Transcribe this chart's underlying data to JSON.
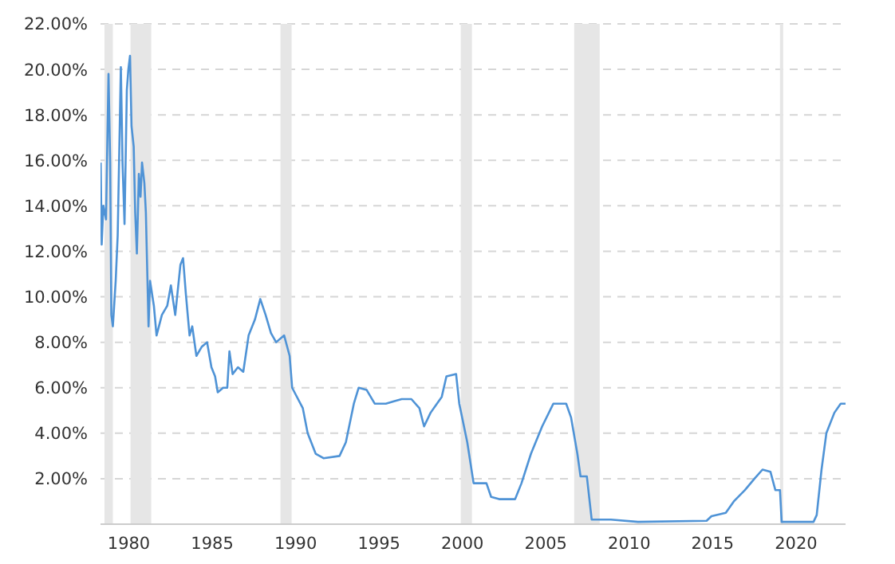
{
  "chart_data": {
    "type": "line",
    "x": [
      1978.31,
      1978.37,
      1978.47,
      1978.63,
      1978.78,
      1978.88,
      1978.95,
      1979.04,
      1979.21,
      1979.33,
      1979.52,
      1979.62,
      1979.74,
      1979.88,
      1979.97,
      1980.07,
      1980.16,
      1980.29,
      1980.38,
      1980.48,
      1980.6,
      1980.7,
      1980.79,
      1980.93,
      1981.02,
      1981.18,
      1981.27,
      1981.5,
      1981.66,
      1981.98,
      1982.3,
      1982.52,
      1982.78,
      1983.09,
      1983.25,
      1983.42,
      1983.64,
      1983.8,
      1984.05,
      1984.37,
      1984.69,
      1984.95,
      1985.17,
      1985.33,
      1985.65,
      1985.9,
      1986.03,
      1986.22,
      1986.54,
      1986.86,
      1987.18,
      1987.56,
      1987.88,
      1988.2,
      1988.52,
      1988.83,
      1989.31,
      1989.64,
      1989.79,
      1990.43,
      1990.72,
      1991.2,
      1991.67,
      1992.63,
      1993.01,
      1993.49,
      1993.78,
      1994.26,
      1994.74,
      1995.41,
      1995.89,
      1996.36,
      1996.94,
      1997.42,
      1997.7,
      1998.09,
      1998.76,
      1999.04,
      1999.62,
      1999.81,
      2000.29,
      2000.67,
      2001.44,
      2001.72,
      2002.2,
      2003.16,
      2003.54,
      2004.11,
      2004.78,
      2005.45,
      2006.22,
      2006.51,
      2006.89,
      2007.08,
      2007.46,
      2007.75,
      2008.33,
      2008.9,
      2010.53,
      2014.64,
      2014.93,
      2015.79,
      2016.27,
      2016.94,
      2017.51,
      2017.99,
      2018.47,
      2018.76,
      2019.04,
      2019.14,
      2021.05,
      2021.24,
      2021.53,
      2021.82,
      2022.3,
      2022.68,
      2022.97
    ],
    "series": [
      {
        "color": "#4f93d6",
        "values": [
          15.9,
          12.3,
          14.0,
          13.4,
          19.8,
          15.9,
          9.2,
          8.7,
          10.7,
          12.7,
          20.1,
          15.9,
          13.2,
          19.1,
          20.0,
          20.6,
          17.5,
          16.6,
          13.7,
          11.9,
          15.4,
          14.4,
          15.9,
          15.0,
          13.7,
          8.7,
          10.7,
          9.6,
          8.3,
          9.2,
          9.6,
          10.5,
          9.2,
          11.4,
          11.7,
          10.1,
          8.3,
          8.7,
          7.4,
          7.8,
          8.0,
          6.9,
          6.5,
          5.8,
          6.0,
          6.0,
          7.6,
          6.6,
          6.9,
          6.7,
          8.3,
          9.0,
          9.9,
          9.2,
          8.4,
          8.0,
          8.3,
          7.4,
          6.0,
          5.1,
          4.0,
          3.1,
          2.9,
          3.0,
          3.6,
          5.3,
          6.0,
          5.9,
          5.3,
          5.3,
          5.4,
          5.5,
          5.5,
          5.1,
          4.3,
          4.9,
          5.6,
          6.5,
          6.6,
          5.3,
          3.6,
          1.8,
          1.8,
          1.2,
          1.1,
          1.1,
          1.8,
          3.1,
          4.3,
          5.3,
          5.3,
          4.7,
          3.1,
          2.1,
          2.1,
          0.2,
          0.2,
          0.2,
          0.1,
          0.15,
          0.35,
          0.5,
          1.0,
          1.5,
          2.0,
          2.4,
          2.3,
          1.5,
          1.5,
          0.1,
          0.1,
          0.4,
          2.4,
          4.0,
          4.9,
          5.3,
          5.3
        ]
      }
    ],
    "xlim": [
      1978.3,
      2022.97
    ],
    "xticks": [
      1980,
      1985,
      1990,
      1995,
      2000,
      2005,
      2010,
      2015,
      2020
    ],
    "ylim": [
      0,
      22
    ],
    "yticks": [
      {
        "value": 0,
        "label": null
      },
      {
        "value": 2,
        "label": "2.00%"
      },
      {
        "value": 4,
        "label": "4.00%"
      },
      {
        "value": 6,
        "label": "6.00%"
      },
      {
        "value": 8,
        "label": "8.00%"
      },
      {
        "value": 10,
        "label": "10.00%"
      },
      {
        "value": 12,
        "label": "12.00%"
      },
      {
        "value": 14,
        "label": "14.00%"
      },
      {
        "value": 16,
        "label": "16.00%"
      },
      {
        "value": 18,
        "label": "18.00%"
      },
      {
        "value": 20,
        "label": "20.00%"
      },
      {
        "value": 22,
        "label": "22.00%"
      }
    ],
    "bands": [
      {
        "axis": "x",
        "from": 1978.54,
        "to": 1979.04,
        "color": "#e6e6e6"
      },
      {
        "axis": "x",
        "from": 1980.1,
        "to": 1981.34,
        "color": "#e6e6e6"
      },
      {
        "axis": "x",
        "from": 1989.09,
        "to": 1989.76,
        "color": "#e6e6e6"
      },
      {
        "axis": "x",
        "from": 1999.9,
        "to": 2000.57,
        "color": "#e6e6e6"
      },
      {
        "axis": "x",
        "from": 2006.7,
        "to": 2008.23,
        "color": "#e6e6e6"
      },
      {
        "axis": "x",
        "from": 2019.04,
        "to": 2019.23,
        "color": "#e6e6e6"
      }
    ],
    "grid": "y",
    "legend": false,
    "marker": "none",
    "line_style": "solid"
  }
}
